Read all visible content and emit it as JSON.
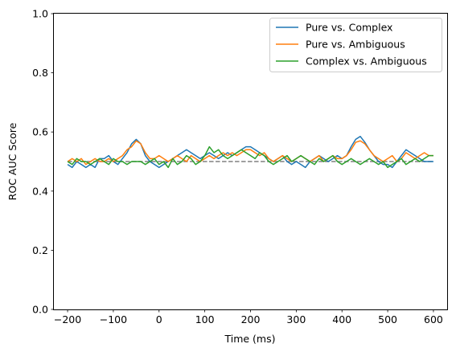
{
  "chart_data": {
    "type": "line",
    "title": "",
    "xlabel": "Time (ms)",
    "ylabel": "ROC AUC Score",
    "xlim": [
      -230,
      630
    ],
    "ylim": [
      0,
      1
    ],
    "xticks": [
      -200,
      -100,
      0,
      100,
      200,
      300,
      400,
      500,
      600
    ],
    "xtick_labels": [
      "−200",
      "−100",
      "0",
      "100",
      "200",
      "300",
      "400",
      "500",
      "600"
    ],
    "yticks": [
      0.0,
      0.2,
      0.4,
      0.6,
      0.8,
      1.0
    ],
    "ytick_labels": [
      "0.0",
      "0.2",
      "0.4",
      "0.6",
      "0.8",
      "1.0"
    ],
    "grid": false,
    "legend_position": "top-right",
    "chance_line": {
      "x": [
        -200,
        600
      ],
      "y": 0.5,
      "style": "dashed",
      "color": "#808080"
    },
    "series": [
      {
        "name": "Pure vs. Complex",
        "color": "#1f77b4",
        "x": [
          -200,
          -190,
          -180,
          -170,
          -160,
          -150,
          -140,
          -130,
          -120,
          -110,
          -100,
          -90,
          -80,
          -70,
          -60,
          -50,
          -40,
          -30,
          -20,
          -10,
          0,
          10,
          20,
          30,
          40,
          50,
          60,
          70,
          80,
          90,
          100,
          110,
          120,
          130,
          140,
          150,
          160,
          170,
          180,
          190,
          200,
          210,
          220,
          230,
          240,
          250,
          260,
          270,
          280,
          290,
          300,
          310,
          320,
          330,
          340,
          350,
          360,
          370,
          380,
          390,
          400,
          410,
          420,
          430,
          440,
          450,
          460,
          470,
          480,
          490,
          500,
          510,
          520,
          530,
          540,
          550,
          560,
          570,
          580,
          590,
          600
        ],
        "y": [
          0.49,
          0.48,
          0.5,
          0.49,
          0.48,
          0.49,
          0.48,
          0.51,
          0.51,
          0.52,
          0.5,
          0.49,
          0.51,
          0.53,
          0.56,
          0.575,
          0.56,
          0.52,
          0.5,
          0.49,
          0.48,
          0.49,
          0.5,
          0.51,
          0.52,
          0.53,
          0.54,
          0.53,
          0.52,
          0.51,
          0.52,
          0.53,
          0.52,
          0.51,
          0.52,
          0.53,
          0.52,
          0.53,
          0.54,
          0.55,
          0.55,
          0.54,
          0.53,
          0.52,
          0.51,
          0.5,
          0.51,
          0.52,
          0.5,
          0.49,
          0.5,
          0.49,
          0.48,
          0.5,
          0.51,
          0.52,
          0.51,
          0.5,
          0.51,
          0.52,
          0.51,
          0.52,
          0.55,
          0.575,
          0.585,
          0.565,
          0.54,
          0.52,
          0.5,
          0.49,
          0.49,
          0.48,
          0.5,
          0.52,
          0.54,
          0.53,
          0.52,
          0.51,
          0.5,
          0.5,
          0.5
        ]
      },
      {
        "name": "Pure vs. Ambiguous",
        "color": "#ff7f0e",
        "x": [
          -200,
          -190,
          -180,
          -170,
          -160,
          -150,
          -140,
          -130,
          -120,
          -110,
          -100,
          -90,
          -80,
          -70,
          -60,
          -50,
          -40,
          -30,
          -20,
          -10,
          0,
          10,
          20,
          30,
          40,
          50,
          60,
          70,
          80,
          90,
          100,
          110,
          120,
          130,
          140,
          150,
          160,
          170,
          180,
          190,
          200,
          210,
          220,
          230,
          240,
          250,
          260,
          270,
          280,
          290,
          300,
          310,
          320,
          330,
          340,
          350,
          360,
          370,
          380,
          390,
          400,
          410,
          420,
          430,
          440,
          450,
          460,
          470,
          480,
          490,
          500,
          510,
          520,
          530,
          540,
          550,
          560,
          570,
          580,
          590,
          600
        ],
        "y": [
          0.5,
          0.51,
          0.5,
          0.51,
          0.49,
          0.5,
          0.51,
          0.5,
          0.5,
          0.51,
          0.5,
          0.51,
          0.52,
          0.54,
          0.55,
          0.57,
          0.56,
          0.53,
          0.51,
          0.51,
          0.52,
          0.51,
          0.5,
          0.51,
          0.52,
          0.51,
          0.5,
          0.52,
          0.51,
          0.5,
          0.51,
          0.52,
          0.51,
          0.52,
          0.53,
          0.52,
          0.53,
          0.52,
          0.53,
          0.54,
          0.54,
          0.53,
          0.52,
          0.53,
          0.51,
          0.5,
          0.51,
          0.52,
          0.51,
          0.5,
          0.51,
          0.52,
          0.51,
          0.5,
          0.51,
          0.52,
          0.5,
          0.51,
          0.52,
          0.51,
          0.51,
          0.52,
          0.54,
          0.565,
          0.57,
          0.56,
          0.54,
          0.52,
          0.51,
          0.5,
          0.51,
          0.52,
          0.5,
          0.51,
          0.53,
          0.52,
          0.51,
          0.52,
          0.53,
          0.52,
          0.52
        ]
      },
      {
        "name": "Complex vs. Ambiguous",
        "color": "#2ca02c",
        "x": [
          -200,
          -190,
          -180,
          -170,
          -160,
          -150,
          -140,
          -130,
          -120,
          -110,
          -100,
          -90,
          -80,
          -70,
          -60,
          -50,
          -40,
          -30,
          -20,
          -10,
          0,
          10,
          20,
          30,
          40,
          50,
          60,
          70,
          80,
          90,
          100,
          110,
          120,
          130,
          140,
          150,
          160,
          170,
          180,
          190,
          200,
          210,
          220,
          230,
          240,
          250,
          260,
          270,
          280,
          290,
          300,
          310,
          320,
          330,
          340,
          350,
          360,
          370,
          380,
          390,
          400,
          410,
          420,
          430,
          440,
          450,
          460,
          470,
          480,
          490,
          500,
          510,
          520,
          530,
          540,
          550,
          560,
          570,
          580,
          590,
          600
        ],
        "y": [
          0.5,
          0.49,
          0.51,
          0.5,
          0.5,
          0.49,
          0.5,
          0.51,
          0.5,
          0.49,
          0.51,
          0.5,
          0.5,
          0.49,
          0.5,
          0.5,
          0.5,
          0.49,
          0.5,
          0.51,
          0.49,
          0.5,
          0.48,
          0.51,
          0.49,
          0.5,
          0.52,
          0.51,
          0.49,
          0.5,
          0.52,
          0.55,
          0.53,
          0.54,
          0.52,
          0.51,
          0.52,
          0.53,
          0.54,
          0.53,
          0.52,
          0.51,
          0.53,
          0.52,
          0.5,
          0.49,
          0.5,
          0.51,
          0.52,
          0.5,
          0.51,
          0.52,
          0.51,
          0.5,
          0.49,
          0.51,
          0.5,
          0.51,
          0.52,
          0.5,
          0.49,
          0.5,
          0.51,
          0.5,
          0.49,
          0.5,
          0.51,
          0.5,
          0.49,
          0.5,
          0.48,
          0.49,
          0.5,
          0.51,
          0.49,
          0.5,
          0.51,
          0.5,
          0.51,
          0.52,
          0.52
        ]
      }
    ]
  }
}
